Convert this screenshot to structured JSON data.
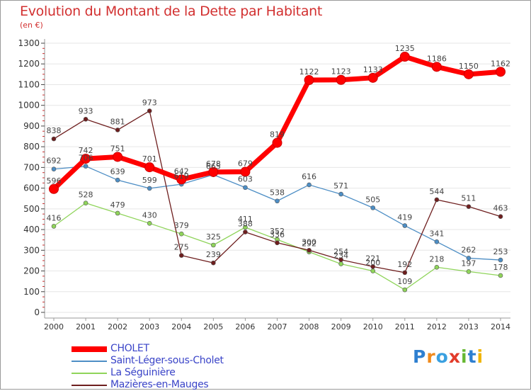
{
  "chart_title": "Evolution du Montant de la Dette par Habitant",
  "unit_label": "(en €)",
  "logo_text": "Proxiti",
  "chart_data": {
    "type": "line",
    "title": "Evolution du Montant de la Dette par Habitant",
    "subtitle": "(en €)",
    "x": [
      "2000",
      "2001",
      "2002",
      "2003",
      "2004",
      "2005",
      "2006",
      "2007",
      "2008",
      "2009",
      "2010",
      "2011",
      "2012",
      "2013",
      "2014"
    ],
    "ylim": [
      0,
      1300
    ],
    "yticks": [
      0,
      100,
      200,
      300,
      400,
      500,
      600,
      700,
      800,
      900,
      1000,
      1100,
      1200,
      1300
    ],
    "grid": true,
    "legend_position": "bottom-left",
    "series": [
      {
        "name": "CHOLET",
        "color": "#ff0000",
        "values": [
          596,
          742,
          751,
          701,
          642,
          678,
          679,
          819,
          1122,
          1123,
          1133,
          1235,
          1186,
          1150,
          1162
        ]
      },
      {
        "name": "Saint-Léger-sous-Cholet",
        "color": "#4d8ec5",
        "values": [
          692,
          706,
          639,
          599,
          619,
          665,
          603,
          538,
          616,
          571,
          505,
          419,
          341,
          262,
          253
        ]
      },
      {
        "name": "La Séguinière",
        "color": "#8fd45a",
        "values": [
          416,
          528,
          479,
          430,
          379,
          325,
          411,
          352,
          292,
          234,
          200,
          109,
          218,
          197,
          178
        ]
      },
      {
        "name": "Mazières-en-Mauges",
        "color": "#6e1e1e",
        "values": [
          838,
          933,
          881,
          973,
          275,
          239,
          388,
          336,
          300,
          254,
          221,
          192,
          544,
          511,
          463
        ]
      }
    ]
  }
}
